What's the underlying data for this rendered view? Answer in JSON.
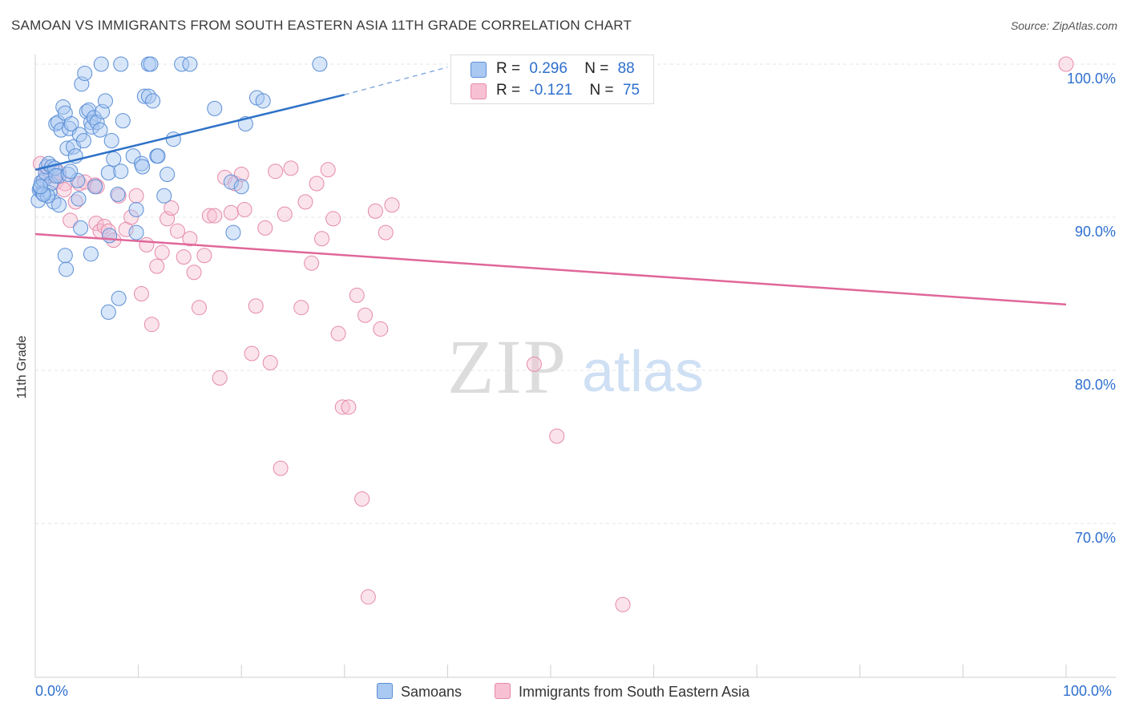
{
  "title": "SAMOAN VS IMMIGRANTS FROM SOUTH EASTERN ASIA 11TH GRADE CORRELATION CHART",
  "source": "Source: ZipAtlas.com",
  "watermark": {
    "zip": "ZIP",
    "atlas": "atlas"
  },
  "legend": {
    "r_label": "R =",
    "n_label": "N =",
    "rows": [
      {
        "r": "0.296",
        "n": "88"
      },
      {
        "r": "-0.121",
        "n": "75"
      }
    ]
  },
  "colors": {
    "blue_fill": "#a9c8f2",
    "blue_stroke": "#5b8fd6",
    "blue_line": "#2f72c8",
    "pink_fill": "#f7c1d3",
    "pink_stroke": "#e58aab",
    "pink_line": "#e0679a",
    "axis_text": "#2e6fcf",
    "grid": "#e6e6e6"
  },
  "chart_data": {
    "type": "scatter",
    "title": "SAMOAN VS IMMIGRANTS FROM SOUTH EASTERN ASIA 11TH GRADE CORRELATION CHART",
    "ylabel": "11th Grade",
    "xlabel": "",
    "xlim": [
      0,
      100
    ],
    "ylim": [
      60,
      101
    ],
    "x_tick_labels": [
      "0.0%",
      "100.0%"
    ],
    "y_ticks": [
      {
        "value": 100,
        "label": "100.0%"
      },
      {
        "value": 90,
        "label": "90.0%"
      },
      {
        "value": 80,
        "label": "80.0%"
      },
      {
        "value": 70,
        "label": "70.0%"
      }
    ],
    "grid": true,
    "legend_position": "bottom",
    "series": [
      {
        "name": "Samoans",
        "color": "#a9c8f2",
        "trend": {
          "x": [
            0,
            30
          ],
          "y": [
            93.1,
            98.0
          ],
          "dashed_to": [
            40,
            99.8
          ]
        },
        "points": [
          [
            0.3,
            91.1
          ],
          [
            0.4,
            91.8
          ],
          [
            0.5,
            91.9
          ],
          [
            0.6,
            92.3
          ],
          [
            0.7,
            91.6
          ],
          [
            0.8,
            92.4
          ],
          [
            1.0,
            92.9
          ],
          [
            1.1,
            93.3
          ],
          [
            1.3,
            93.5
          ],
          [
            1.4,
            91.6
          ],
          [
            1.5,
            92.2
          ],
          [
            1.6,
            93.3
          ],
          [
            1.8,
            91.0
          ],
          [
            2.0,
            96.1
          ],
          [
            2.2,
            96.2
          ],
          [
            2.3,
            92.7
          ],
          [
            2.5,
            95.7
          ],
          [
            2.7,
            97.2
          ],
          [
            2.9,
            96.8
          ],
          [
            3.1,
            94.5
          ],
          [
            3.3,
            95.8
          ],
          [
            3.5,
            96.1
          ],
          [
            3.7,
            94.6
          ],
          [
            3.9,
            94.0
          ],
          [
            4.1,
            92.4
          ],
          [
            4.3,
            95.4
          ],
          [
            4.5,
            98.7
          ],
          [
            4.8,
            99.4
          ],
          [
            5.0,
            96.9
          ],
          [
            5.2,
            97.0
          ],
          [
            5.4,
            96.2
          ],
          [
            5.5,
            95.9
          ],
          [
            5.7,
            96.5
          ],
          [
            6.0,
            96.2
          ],
          [
            6.3,
            95.7
          ],
          [
            6.5,
            96.9
          ],
          [
            6.8,
            97.6
          ],
          [
            7.1,
            92.9
          ],
          [
            7.4,
            95.0
          ],
          [
            7.6,
            93.8
          ],
          [
            8.0,
            91.5
          ],
          [
            8.3,
            93.0
          ],
          [
            8.5,
            96.3
          ],
          [
            9.5,
            94.0
          ],
          [
            10.3,
            93.5
          ],
          [
            10.6,
            97.9
          ],
          [
            11.0,
            97.9
          ],
          [
            11.4,
            97.6
          ],
          [
            11.8,
            94.0
          ],
          [
            12.5,
            91.4
          ],
          [
            12.8,
            92.8
          ],
          [
            13.4,
            95.1
          ],
          [
            14.2,
            100.0
          ],
          [
            15.0,
            100.0
          ],
          [
            17.4,
            97.1
          ],
          [
            19.0,
            92.3
          ],
          [
            20.0,
            92.0
          ],
          [
            20.4,
            96.1
          ],
          [
            21.5,
            97.8
          ],
          [
            22.1,
            97.6
          ],
          [
            6.4,
            100.0
          ],
          [
            8.3,
            100.0
          ],
          [
            11.0,
            100.0
          ],
          [
            11.2,
            100.0
          ],
          [
            27.6,
            100.0
          ],
          [
            3.0,
            86.6
          ],
          [
            2.9,
            87.5
          ],
          [
            5.4,
            87.6
          ],
          [
            7.2,
            88.8
          ],
          [
            4.4,
            89.3
          ],
          [
            9.8,
            89.0
          ],
          [
            19.2,
            89.0
          ],
          [
            8.1,
            84.7
          ],
          [
            7.1,
            83.8
          ],
          [
            2.3,
            90.8
          ],
          [
            1.2,
            91.4
          ],
          [
            0.8,
            91.5
          ],
          [
            1.9,
            93.2
          ],
          [
            2.0,
            92.7
          ],
          [
            3.2,
            92.8
          ],
          [
            4.2,
            91.2
          ],
          [
            5.8,
            92.0
          ],
          [
            9.8,
            90.5
          ],
          [
            10.4,
            93.3
          ],
          [
            11.9,
            94.0
          ],
          [
            3.4,
            93.0
          ],
          [
            4.7,
            95.0
          ],
          [
            0.5,
            92.0
          ]
        ]
      },
      {
        "name": "Immigrants from South Eastern Asia",
        "color": "#f7c1d3",
        "trend": {
          "x": [
            0,
            100
          ],
          "y": [
            88.9,
            84.3
          ]
        },
        "points": [
          [
            0.5,
            93.5
          ],
          [
            1.0,
            92.6
          ],
          [
            1.5,
            92.7
          ],
          [
            2.0,
            92.3
          ],
          [
            2.3,
            92.9
          ],
          [
            2.9,
            92.2
          ],
          [
            3.4,
            89.8
          ],
          [
            3.9,
            91.0
          ],
          [
            4.3,
            92.2
          ],
          [
            4.8,
            92.3
          ],
          [
            5.8,
            92.1
          ],
          [
            5.9,
            89.6
          ],
          [
            6.3,
            89.1
          ],
          [
            6.7,
            89.4
          ],
          [
            7.1,
            89.1
          ],
          [
            7.6,
            88.5
          ],
          [
            8.1,
            91.4
          ],
          [
            8.8,
            89.2
          ],
          [
            9.3,
            90.0
          ],
          [
            9.8,
            91.4
          ],
          [
            10.3,
            85.0
          ],
          [
            10.8,
            88.2
          ],
          [
            11.3,
            83.0
          ],
          [
            11.8,
            86.8
          ],
          [
            12.3,
            87.7
          ],
          [
            12.8,
            89.9
          ],
          [
            13.2,
            90.6
          ],
          [
            13.8,
            89.1
          ],
          [
            14.4,
            87.4
          ],
          [
            15.0,
            88.6
          ],
          [
            15.4,
            86.4
          ],
          [
            15.9,
            84.1
          ],
          [
            16.4,
            87.5
          ],
          [
            16.9,
            90.1
          ],
          [
            17.4,
            90.1
          ],
          [
            17.9,
            79.5
          ],
          [
            18.4,
            92.6
          ],
          [
            19.0,
            90.3
          ],
          [
            19.4,
            92.2
          ],
          [
            20.0,
            92.8
          ],
          [
            20.3,
            90.5
          ],
          [
            21.0,
            81.1
          ],
          [
            21.4,
            84.2
          ],
          [
            22.3,
            89.3
          ],
          [
            22.8,
            80.5
          ],
          [
            23.3,
            93.0
          ],
          [
            23.8,
            73.6
          ],
          [
            24.2,
            90.2
          ],
          [
            24.8,
            93.2
          ],
          [
            25.8,
            84.1
          ],
          [
            26.2,
            91.0
          ],
          [
            26.8,
            87.0
          ],
          [
            27.3,
            92.2
          ],
          [
            27.8,
            88.6
          ],
          [
            28.4,
            93.1
          ],
          [
            28.9,
            89.9
          ],
          [
            29.4,
            82.4
          ],
          [
            29.8,
            77.6
          ],
          [
            30.4,
            77.6
          ],
          [
            31.2,
            84.9
          ],
          [
            31.7,
            71.6
          ],
          [
            32.0,
            83.6
          ],
          [
            32.3,
            65.2
          ],
          [
            33.0,
            90.4
          ],
          [
            33.5,
            82.7
          ],
          [
            34.0,
            89.0
          ],
          [
            34.6,
            90.8
          ],
          [
            48.4,
            80.4
          ],
          [
            50.6,
            75.7
          ],
          [
            53.2,
            100.0
          ],
          [
            57.0,
            64.7
          ],
          [
            57.3,
            100.0
          ],
          [
            100.0,
            100.0
          ],
          [
            2.8,
            91.8
          ],
          [
            6.0,
            92.0
          ]
        ]
      }
    ]
  },
  "bottom_legend": [
    "Samoans",
    "Immigrants from South Eastern Asia"
  ]
}
